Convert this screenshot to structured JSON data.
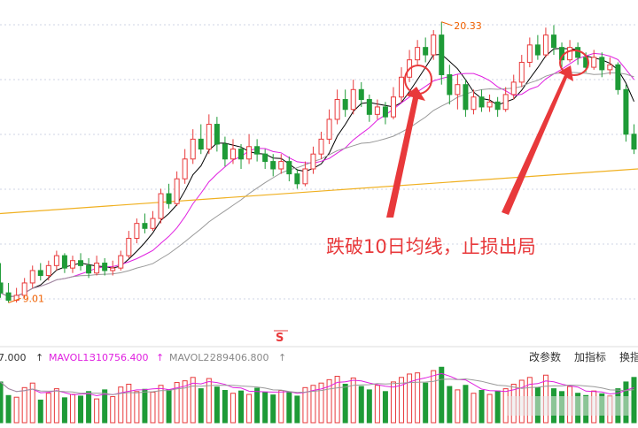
{
  "colors": {
    "up": "#e8393b",
    "down": "#1e9b37",
    "ma_short": "#000000",
    "ma_mid": "#e020e0",
    "ma_long": "#999999",
    "ma_yearly": "#f0b020",
    "annotation": "#e8393b",
    "price_mark": "#f06000"
  },
  "annotation_text": "跌破10日均线，止损出局",
  "signal_mark": "S",
  "volume_bar": {
    "left_value": "7.000",
    "mavol1_label": "MAVOL1:",
    "mavol1_value": "310756.400",
    "mavol2_label": "MAVOL2:",
    "mavol2_value": "289406.800",
    "buttons": [
      "改参数",
      "加指标",
      "换指"
    ]
  },
  "chart_data": {
    "type": "candlestick",
    "high_label": "20.33",
    "low_label": "9.01",
    "ylim": [
      8.3,
      21.0
    ],
    "grid": "horizontal dashed",
    "candles": [
      [
        9.8,
        9.4,
        10.6,
        9.2
      ],
      [
        9.4,
        9.1,
        9.8,
        9.0
      ],
      [
        9.1,
        9.3,
        9.6,
        9.01
      ],
      [
        9.3,
        9.8,
        10.0,
        9.2
      ],
      [
        9.8,
        10.3,
        10.5,
        9.6
      ],
      [
        10.3,
        10.1,
        10.6,
        9.9
      ],
      [
        10.1,
        10.5,
        10.7,
        9.9
      ],
      [
        10.5,
        10.9,
        11.1,
        10.3
      ],
      [
        10.9,
        10.4,
        11.0,
        10.2
      ],
      [
        10.4,
        10.7,
        10.9,
        10.2
      ],
      [
        10.7,
        10.5,
        11.0,
        10.3
      ],
      [
        10.5,
        10.2,
        10.8,
        10.0
      ],
      [
        10.2,
        10.6,
        10.9,
        10.1
      ],
      [
        10.6,
        10.3,
        10.8,
        10.1
      ],
      [
        10.3,
        10.4,
        10.7,
        10.1
      ],
      [
        10.4,
        10.9,
        11.1,
        10.3
      ],
      [
        10.9,
        11.6,
        11.9,
        10.8
      ],
      [
        11.6,
        12.2,
        12.4,
        11.4
      ],
      [
        12.2,
        12.0,
        12.6,
        11.8
      ],
      [
        12.0,
        12.4,
        12.7,
        11.9
      ],
      [
        12.4,
        13.4,
        13.6,
        12.2
      ],
      [
        13.4,
        13.0,
        13.8,
        12.8
      ],
      [
        13.0,
        14.0,
        14.3,
        12.9
      ],
      [
        14.0,
        14.8,
        15.2,
        13.8
      ],
      [
        14.8,
        15.6,
        16.0,
        14.6
      ],
      [
        15.6,
        15.2,
        16.2,
        15.0
      ],
      [
        15.2,
        16.2,
        16.6,
        15.0
      ],
      [
        16.2,
        15.4,
        16.5,
        15.1
      ],
      [
        15.4,
        14.8,
        15.7,
        14.5
      ],
      [
        14.8,
        15.2,
        15.6,
        14.6
      ],
      [
        15.2,
        14.8,
        15.4,
        14.4
      ],
      [
        14.8,
        15.3,
        15.8,
        14.6
      ],
      [
        15.3,
        15.0,
        15.6,
        14.7
      ],
      [
        15.0,
        14.7,
        15.2,
        14.4
      ],
      [
        14.7,
        14.4,
        15.0,
        14.1
      ],
      [
        14.4,
        14.7,
        15.0,
        14.2
      ],
      [
        14.7,
        14.2,
        14.9,
        13.9
      ],
      [
        14.2,
        13.8,
        14.4,
        13.6
      ],
      [
        13.8,
        14.4,
        14.7,
        13.7
      ],
      [
        14.4,
        15.0,
        15.3,
        14.2
      ],
      [
        15.0,
        15.6,
        15.9,
        14.8
      ],
      [
        15.6,
        16.4,
        16.8,
        15.4
      ],
      [
        16.4,
        17.2,
        17.6,
        16.2
      ],
      [
        17.2,
        16.8,
        17.6,
        16.5
      ],
      [
        16.8,
        17.6,
        18.0,
        16.6
      ],
      [
        17.6,
        17.2,
        17.9,
        16.9
      ],
      [
        17.2,
        16.6,
        17.4,
        16.3
      ],
      [
        16.6,
        16.9,
        17.2,
        16.4
      ],
      [
        16.9,
        16.5,
        17.1,
        16.2
      ],
      [
        16.5,
        17.3,
        17.7,
        16.4
      ],
      [
        17.3,
        18.1,
        18.5,
        17.1
      ],
      [
        18.1,
        18.8,
        19.2,
        17.9
      ],
      [
        18.8,
        19.3,
        19.6,
        18.6
      ],
      [
        19.3,
        19.0,
        19.7,
        18.7
      ],
      [
        19.0,
        19.8,
        20.0,
        18.8
      ],
      [
        19.8,
        18.2,
        20.33,
        17.8
      ],
      [
        18.2,
        17.4,
        18.6,
        17.0
      ],
      [
        17.4,
        17.8,
        18.2,
        16.8
      ],
      [
        17.8,
        16.8,
        18.0,
        16.5
      ],
      [
        16.8,
        17.3,
        17.6,
        16.6
      ],
      [
        17.3,
        16.9,
        17.6,
        16.7
      ],
      [
        16.9,
        17.1,
        17.4,
        16.7
      ],
      [
        17.1,
        16.8,
        17.3,
        16.5
      ],
      [
        16.8,
        17.4,
        17.7,
        16.7
      ],
      [
        17.4,
        17.9,
        18.2,
        17.2
      ],
      [
        17.9,
        18.7,
        19.0,
        17.7
      ],
      [
        18.7,
        19.4,
        19.7,
        18.5
      ],
      [
        19.4,
        19.0,
        19.8,
        18.8
      ],
      [
        19.0,
        19.8,
        20.1,
        18.9
      ],
      [
        19.8,
        19.3,
        20.2,
        19.0
      ],
      [
        19.3,
        18.8,
        19.5,
        18.5
      ],
      [
        18.8,
        19.3,
        19.6,
        18.7
      ],
      [
        19.3,
        18.9,
        19.5,
        18.6
      ],
      [
        18.9,
        18.5,
        19.1,
        18.3
      ],
      [
        18.5,
        18.9,
        19.2,
        18.4
      ],
      [
        18.9,
        18.4,
        19.1,
        18.1
      ],
      [
        18.4,
        18.6,
        18.9,
        18.2
      ],
      [
        18.6,
        17.6,
        18.7,
        17.4
      ],
      [
        17.6,
        15.8,
        17.8,
        15.5
      ],
      [
        15.8,
        15.2,
        16.2,
        15.0
      ]
    ],
    "volumes": [
      72,
      48,
      45,
      62,
      70,
      40,
      52,
      60,
      44,
      50,
      47,
      55,
      42,
      58,
      46,
      63,
      68,
      55,
      59,
      54,
      66,
      58,
      71,
      74,
      80,
      60,
      78,
      63,
      57,
      52,
      56,
      50,
      61,
      54,
      49,
      57,
      53,
      47,
      62,
      66,
      70,
      76,
      82,
      68,
      79,
      64,
      58,
      66,
      55,
      72,
      80,
      86,
      88,
      70,
      92,
      98,
      64,
      58,
      66,
      52,
      57,
      50,
      56,
      60,
      68,
      75,
      80,
      62,
      84,
      60,
      55,
      64,
      52,
      48,
      56,
      51,
      47,
      60,
      72,
      80
    ],
    "ma_yearly": {
      "start": 12.6,
      "end": 14.4
    }
  }
}
